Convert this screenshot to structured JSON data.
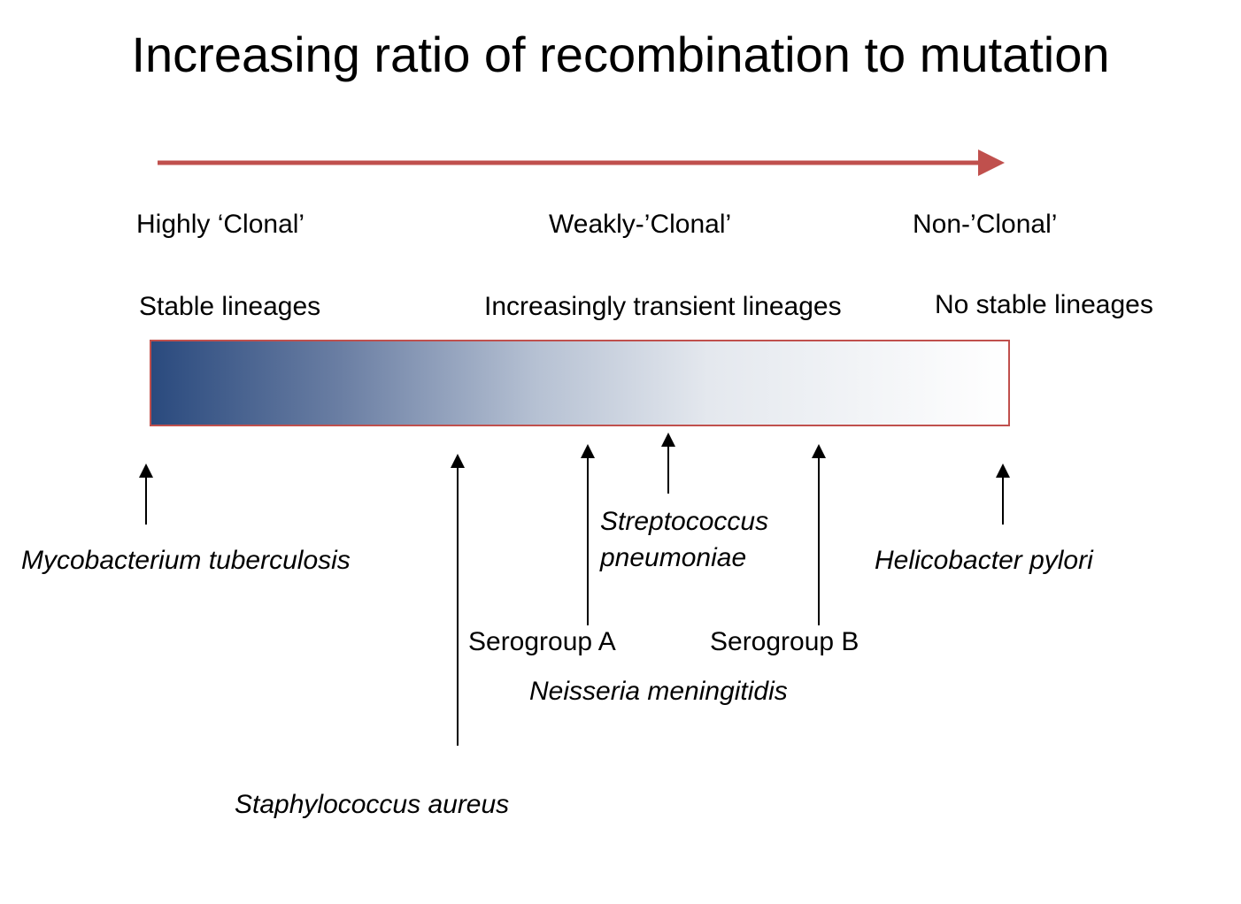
{
  "title": "Increasing ratio of recombination to mutation",
  "colors": {
    "arrow": "#c0504d",
    "bar_border": "#c0504d",
    "gradient_start": "#2a4a7e",
    "gradient_end": "#ffffff"
  },
  "clonality": {
    "highly": "Highly ‘Clonal’",
    "weakly": "Weakly-’Clonal’",
    "non": "Non-’Clonal’"
  },
  "lineages": {
    "stable": "Stable lineages",
    "transient": "Increasingly transient lineages",
    "none": "No stable lineages"
  },
  "species": {
    "mycobacterium": "Mycobacterium tuberculosis",
    "staphylococcus": "Staphylococcus aureus",
    "streptococcus_line1": "Streptococcus",
    "streptococcus_line2": "pneumoniae",
    "serogroup_a": "Serogroup A",
    "serogroup_b": "Serogroup B",
    "neisseria": "Neisseria meningitidis",
    "helicobacter": "Helicobacter pylori"
  }
}
